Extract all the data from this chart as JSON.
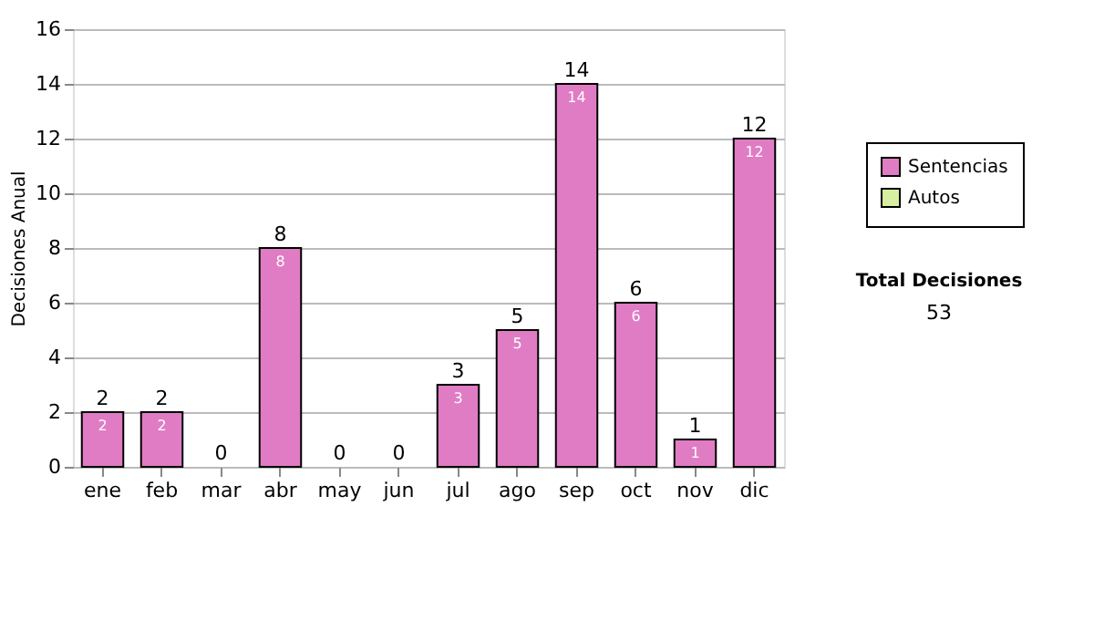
{
  "chart_data": {
    "type": "bar",
    "stacked": true,
    "ylabel": "Decisiones Anual",
    "categories": [
      "ene",
      "feb",
      "mar",
      "abr",
      "may",
      "jun",
      "jul",
      "ago",
      "sep",
      "oct",
      "nov",
      "dic"
    ],
    "series": [
      {
        "name": "Sentencias",
        "color": "#e07cc4",
        "values": [
          2,
          2,
          0,
          8,
          0,
          0,
          3,
          5,
          14,
          6,
          1,
          12
        ],
        "value_labels": [
          "2",
          "2",
          null,
          "8",
          null,
          null,
          "3",
          "5",
          "14",
          "6",
          "1",
          "12"
        ]
      },
      {
        "name": "Autos",
        "color": "#d8eea0",
        "values": [
          0,
          0,
          0,
          0,
          0,
          0,
          0,
          0,
          0,
          0,
          0,
          0
        ]
      }
    ],
    "totals": [
      "2",
      "2",
      "0",
      "8",
      "0",
      "0",
      "3",
      "5",
      "14",
      "6",
      "1",
      "12"
    ],
    "ylim": [
      0,
      16
    ],
    "yticks": [
      0,
      2,
      4,
      6,
      8,
      10,
      12,
      14,
      16
    ],
    "grid": "y",
    "legend": "right",
    "annotations": [
      "Total Decisiones",
      "53"
    ]
  }
}
